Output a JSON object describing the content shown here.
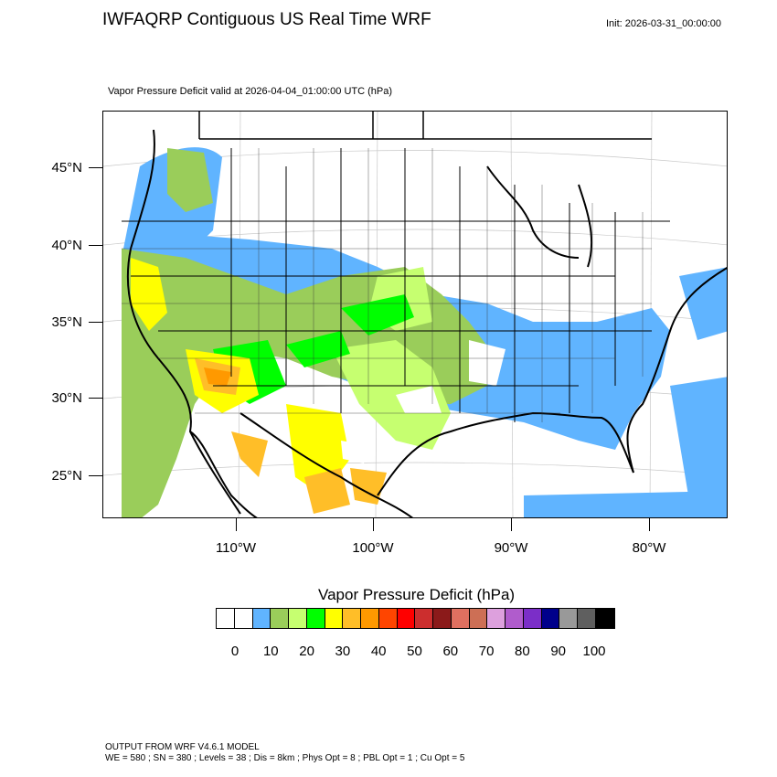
{
  "header": {
    "title": "IWFAQRP Contiguous US Real Time WRF",
    "init": "Init: 2026-03-31_00:00:00",
    "subtitle": "Vapor Pressure Deficit valid at 2026-04-04_01:00:00 UTC   (hPa)"
  },
  "axes": {
    "lat_labels": [
      "45°N",
      "40°N",
      "35°N",
      "30°N",
      "25°N"
    ],
    "lon_labels": [
      "110°W",
      "100°W",
      "90°W",
      "80°W"
    ]
  },
  "colorbar": {
    "title": "Vapor Pressure Deficit  (hPa)",
    "tick_labels": [
      "0",
      "10",
      "20",
      "30",
      "40",
      "50",
      "60",
      "70",
      "80",
      "90",
      "100"
    ],
    "colors": [
      "#ffffff",
      "#ffffff",
      "#60b4ff",
      "#9acd5a",
      "#c6ff70",
      "#00ff00",
      "#ffff00",
      "#ffbe28",
      "#ff9900",
      "#ff4500",
      "#ff0000",
      "#cc2e2e",
      "#8b1a1a",
      "#e07060",
      "#cd6f55",
      "#dda0dd",
      "#b05ccc",
      "#7b2ec8",
      "#00008b",
      "#999999",
      "#5f5f5f",
      "#000000"
    ]
  },
  "footer": {
    "line1": "OUTPUT FROM WRF V4.6.1 MODEL",
    "line2": "WE = 580 ; SN = 380 ; Levels = 38 ; Dis = 8km ; Phys Opt = 8 ; PBL Opt = 1 ; Cu Opt = 5"
  }
}
